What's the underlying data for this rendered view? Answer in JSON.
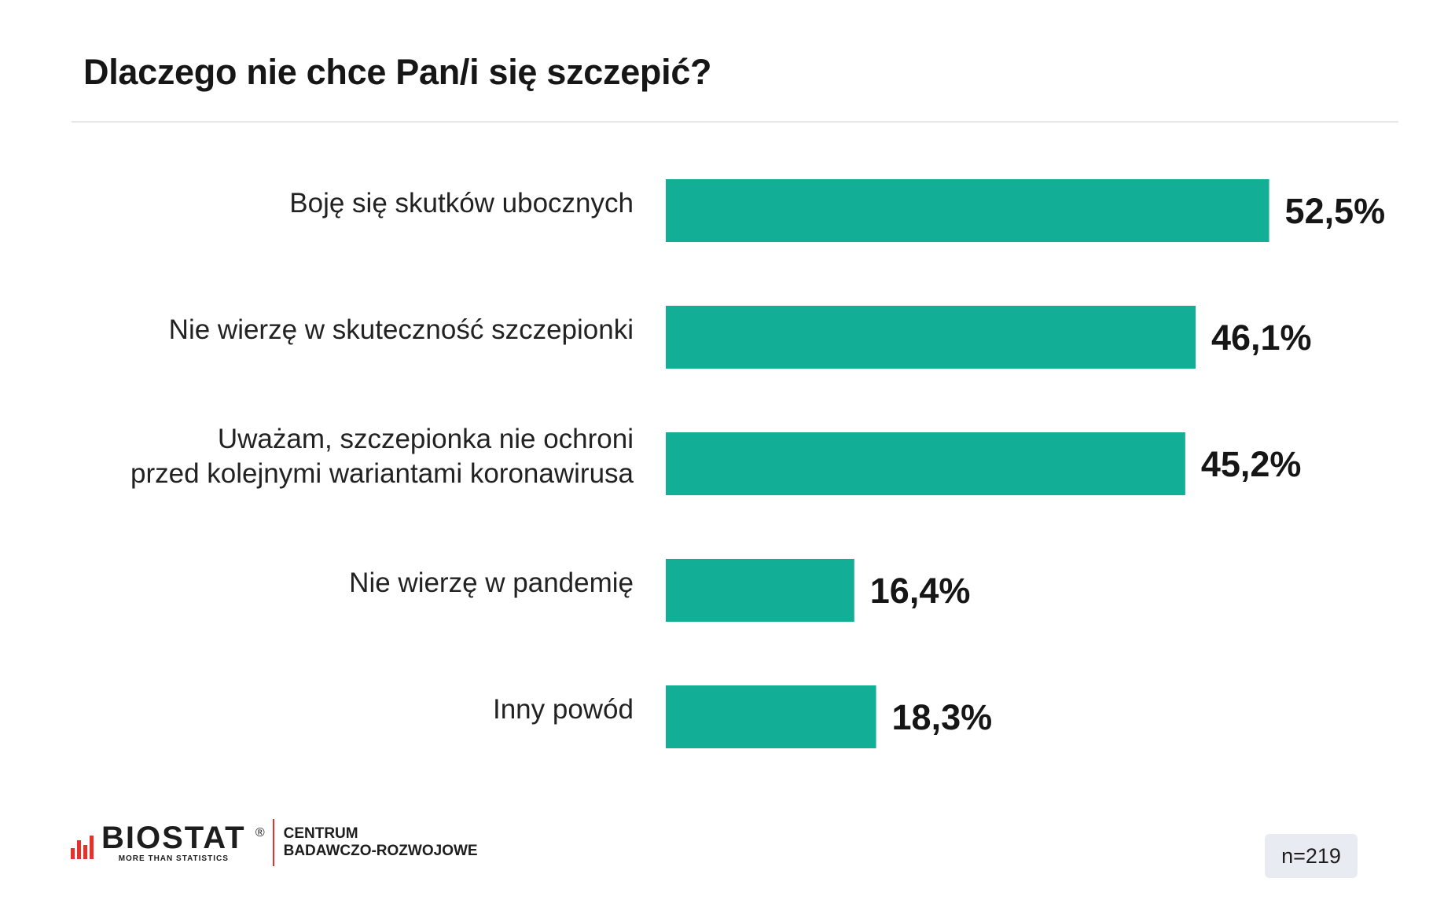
{
  "header": {
    "title": "Dlaczego nie chce Pan/i się szczepić?"
  },
  "chart_data": {
    "type": "bar",
    "orientation": "horizontal",
    "categories": [
      [
        "Boję się skutków ubocznych"
      ],
      [
        "Nie wierzę w skuteczność szczepionki"
      ],
      [
        "Uważam, szczepionka nie ochroni",
        "przed kolejnymi wariantami koronawirusa"
      ],
      [
        "Nie wierzę w pandemię"
      ],
      [
        "Inny powód"
      ]
    ],
    "values": [
      52.5,
      46.1,
      45.2,
      16.4,
      18.3
    ],
    "value_labels": [
      "52,5%",
      "46,1%",
      "45,2%",
      "16,4%",
      "18,3%"
    ],
    "unit": "%",
    "bar_color": "#13ae96",
    "grid": false,
    "legend": "none"
  },
  "footer": {
    "logo_name": "BIOSTAT",
    "logo_registered": "®",
    "logo_tagline": "MORE THAN STATISTICS",
    "logo_center_line1": "CENTRUM",
    "logo_center_line2": "BADAWCZO-ROZWOJOWE",
    "logo_accent_color": "#e5322d",
    "sample_size": "n=219"
  }
}
